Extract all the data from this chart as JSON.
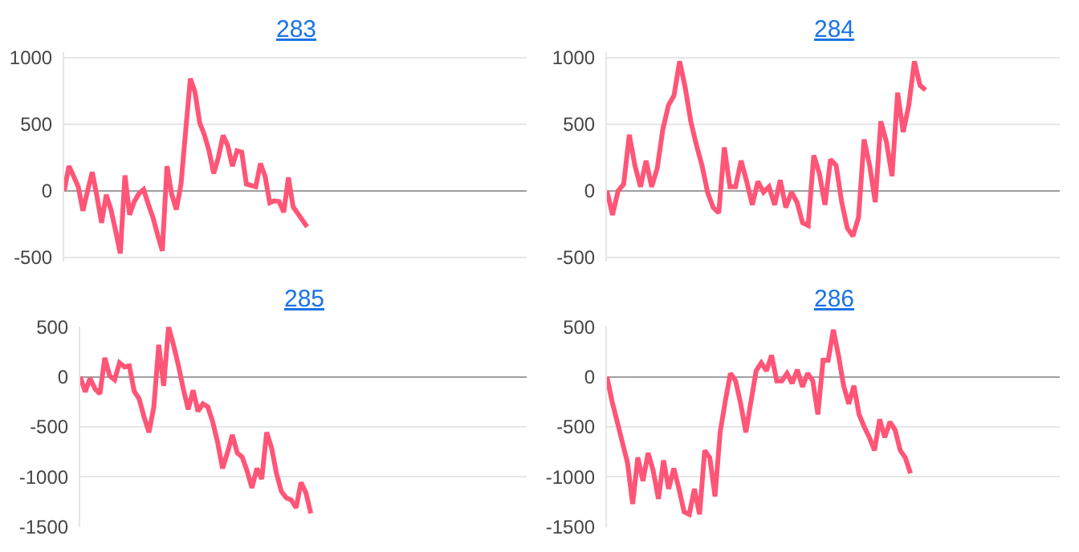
{
  "chart_data": [
    {
      "type": "line",
      "title": "283",
      "categories": [
        null,
        null,
        null,
        null,
        null,
        null,
        null,
        null,
        null,
        null,
        null,
        null,
        null,
        null,
        null,
        null,
        null,
        null,
        null,
        null,
        null,
        null,
        null,
        null,
        null,
        null,
        null,
        null,
        null,
        null,
        null,
        null,
        null,
        null,
        null,
        null,
        null,
        null,
        null,
        null,
        null,
        null,
        null,
        null,
        null,
        null,
        null,
        null,
        null,
        null,
        null,
        null,
        null,
        null,
        null,
        null,
        null,
        null,
        null,
        null,
        null,
        null,
        null,
        null,
        null,
        null,
        null,
        null,
        null,
        null,
        null,
        null,
        null,
        null,
        null,
        null,
        null,
        null,
        null,
        null,
        null,
        null,
        null,
        null,
        null,
        null,
        null,
        null,
        null,
        null,
        null,
        null,
        null,
        null,
        null,
        null,
        null,
        null,
        null,
        null
      ],
      "series": [
        {
          "color": "#ff5577",
          "values": [
            0,
            185,
            110,
            30,
            -150,
            0,
            140,
            -40,
            -240,
            -30,
            -140,
            -300,
            -470,
            115,
            -180,
            -80,
            -20,
            10,
            -100,
            -200,
            -330,
            -450,
            185,
            -25,
            -140,
            50,
            450,
            840,
            740,
            510,
            420,
            300,
            130,
            250,
            415,
            340,
            185,
            300,
            290,
            50,
            40,
            30,
            205,
            110,
            -90,
            -75,
            -80,
            -160,
            100,
            -120,
            -170,
            -220,
            -270,
            null,
            null,
            null,
            null,
            null,
            null,
            null,
            null,
            null,
            null,
            null,
            null,
            null,
            null,
            null,
            null,
            null,
            null,
            null,
            null,
            null,
            null,
            null,
            null,
            null,
            null,
            null,
            null,
            null,
            null,
            null,
            null,
            null,
            null,
            null,
            null,
            null,
            null,
            null,
            null,
            null,
            null,
            null,
            null,
            null,
            null,
            null
          ]
        }
      ],
      "ylim": [
        -530,
        1040
      ],
      "yticks": [
        -500,
        0,
        500,
        1000
      ],
      "grid": "y",
      "tick_labels": "y",
      "line_style": "solid",
      "marker": "none"
    },
    {
      "type": "line",
      "title": "284",
      "categories": [
        null,
        null,
        null,
        null,
        null,
        null,
        null,
        null,
        null,
        null,
        null,
        null,
        null,
        null,
        null,
        null,
        null,
        null,
        null,
        null,
        null,
        null,
        null,
        null,
        null,
        null,
        null,
        null,
        null,
        null,
        null,
        null,
        null,
        null,
        null,
        null,
        null,
        null,
        null,
        null,
        null,
        null,
        null,
        null,
        null,
        null,
        null,
        null,
        null,
        null,
        null,
        null,
        null,
        null,
        null,
        null,
        null,
        null,
        null,
        null,
        null,
        null,
        null,
        null,
        null,
        null,
        null,
        null,
        null,
        null,
        null,
        null,
        null,
        null,
        null,
        null,
        null,
        null,
        null,
        null,
        null,
        null
      ],
      "series": [
        {
          "color": "#ff5577",
          "values": [
            0,
            -180,
            0,
            50,
            420,
            190,
            30,
            225,
            30,
            170,
            460,
            640,
            715,
            970,
            775,
            520,
            345,
            190,
            -10,
            -125,
            -165,
            325,
            30,
            30,
            225,
            70,
            -105,
            70,
            -10,
            30,
            -105,
            80,
            -125,
            -10,
            -85,
            -240,
            -260,
            265,
            130,
            -105,
            235,
            190,
            -85,
            -280,
            -340,
            -200,
            385,
            190,
            -85,
            520,
            365,
            110,
            735,
            440,
            640,
            970,
            790,
            755,
            null,
            null,
            null,
            null,
            null,
            null,
            null,
            null,
            null,
            null,
            null,
            null,
            null,
            null,
            null,
            null,
            null,
            null,
            null,
            null,
            null,
            null,
            null,
            null
          ]
        }
      ],
      "ylim": [
        -530,
        1040
      ],
      "yticks": [
        -500,
        0,
        500,
        1000
      ],
      "grid": "y",
      "tick_labels": "y",
      "line_style": "solid",
      "marker": "none"
    },
    {
      "type": "line",
      "title": "285",
      "categories": [
        null,
        null,
        null,
        null,
        null,
        null,
        null,
        null,
        null,
        null,
        null,
        null,
        null,
        null,
        null,
        null,
        null,
        null,
        null,
        null,
        null,
        null,
        null,
        null,
        null,
        null,
        null,
        null,
        null,
        null,
        null,
        null,
        null,
        null,
        null,
        null,
        null,
        null,
        null,
        null,
        null,
        null,
        null,
        null,
        null,
        null,
        null,
        null,
        null,
        null,
        null,
        null,
        null,
        null,
        null,
        null,
        null,
        null,
        null,
        null,
        null,
        null,
        null,
        null,
        null,
        null,
        null,
        null,
        null,
        null,
        null,
        null,
        null,
        null,
        null,
        null,
        null,
        null,
        null,
        null,
        null,
        null,
        null,
        null,
        null,
        null,
        null,
        null,
        null,
        null,
        null,
        null
      ],
      "series": [
        {
          "color": "#ff5577",
          "values": [
            0,
            -150,
            -15,
            -120,
            -170,
            190,
            10,
            -30,
            140,
            100,
            110,
            -145,
            -220,
            -400,
            -555,
            -300,
            320,
            -90,
            500,
            320,
            115,
            -120,
            -325,
            -135,
            -345,
            -270,
            -300,
            -450,
            -655,
            -915,
            -760,
            -580,
            -760,
            -800,
            -940,
            -1110,
            -915,
            -1020,
            -555,
            -710,
            -965,
            -1145,
            -1210,
            -1230,
            -1310,
            -1055,
            -1160,
            -1365,
            null,
            null,
            null,
            null,
            null,
            null,
            null,
            null,
            null,
            null,
            null,
            null,
            null,
            null,
            null,
            null,
            null,
            null,
            null,
            null,
            null,
            null,
            null,
            null,
            null,
            null,
            null,
            null,
            null,
            null,
            null,
            null,
            null,
            null,
            null,
            null,
            null,
            null,
            null,
            null,
            null,
            null,
            null,
            null
          ]
        }
      ],
      "ylim": [
        -1500,
        500
      ],
      "yticks": [
        -1500,
        -1000,
        -500,
        0,
        500
      ],
      "grid": "y",
      "tick_labels": "y",
      "line_style": "solid",
      "marker": "none"
    },
    {
      "type": "line",
      "title": "286",
      "categories": [
        null,
        null,
        null,
        null,
        null,
        null,
        null,
        null,
        null,
        null,
        null,
        null,
        null,
        null,
        null,
        null,
        null,
        null,
        null,
        null,
        null,
        null,
        null,
        null,
        null,
        null,
        null,
        null,
        null,
        null,
        null,
        null,
        null,
        null,
        null,
        null,
        null,
        null,
        null,
        null,
        null,
        null,
        null,
        null,
        null,
        null,
        null,
        null,
        null,
        null,
        null,
        null,
        null,
        null,
        null,
        null,
        null,
        null,
        null,
        null,
        null,
        null,
        null,
        null,
        null,
        null,
        null,
        null,
        null,
        null,
        null,
        null,
        null,
        null,
        null,
        null,
        null,
        null,
        null,
        null,
        null,
        null,
        null,
        null,
        null,
        null,
        null,
        null,
        null
      ],
      "series": [
        {
          "color": "#ff5577",
          "values": [
            0,
            -245,
            -450,
            -655,
            -860,
            -1270,
            -805,
            -1040,
            -760,
            -940,
            -1220,
            -835,
            -1120,
            -915,
            -1120,
            -1350,
            -1375,
            -1120,
            -1375,
            -735,
            -810,
            -1195,
            -555,
            -245,
            35,
            -40,
            -270,
            -555,
            -245,
            60,
            140,
            60,
            215,
            -40,
            -40,
            35,
            -65,
            70,
            -100,
            35,
            -40,
            -375,
            165,
            165,
            470,
            215,
            -90,
            -270,
            -90,
            -375,
            -500,
            -605,
            -735,
            -425,
            -605,
            -450,
            -530,
            -735,
            -810,
            -965,
            null,
            null,
            null,
            null,
            null,
            null,
            null,
            null,
            null,
            null,
            null,
            null,
            null,
            null,
            null,
            null,
            null,
            null,
            null,
            null,
            null,
            null,
            null,
            null,
            null,
            null,
            null,
            null,
            null
          ]
        }
      ],
      "ylim": [
        -1500,
        500
      ],
      "yticks": [
        -1500,
        -1000,
        -500,
        0,
        500
      ],
      "grid": "y",
      "tick_labels": "y",
      "line_style": "solid",
      "marker": "none"
    }
  ]
}
